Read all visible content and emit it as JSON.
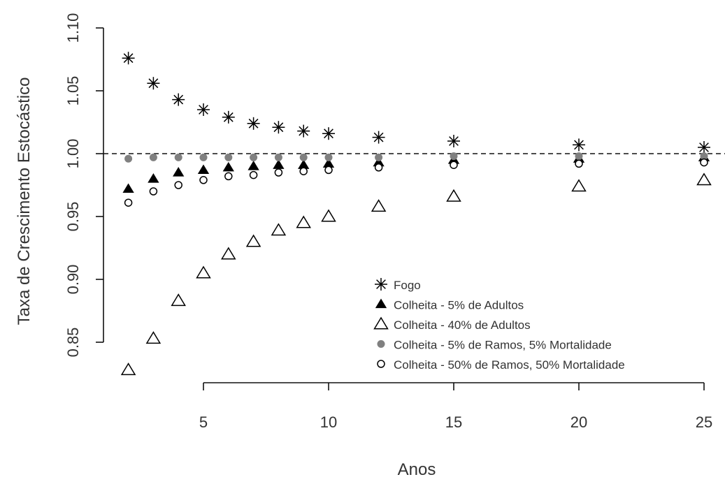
{
  "chart_data": {
    "type": "scatter",
    "xlabel": "Anos",
    "ylabel": "Taxa de Crescimento Estocástico",
    "xlim": [
      1.5,
      26
    ],
    "ylim": [
      0.82,
      1.1
    ],
    "x_ticks": [
      5,
      10,
      15,
      20,
      25
    ],
    "y_ticks": [
      0.85,
      0.9,
      0.95,
      1.0,
      1.05,
      1.1
    ],
    "x_tick_labels": [
      "5",
      "10",
      "15",
      "20",
      "25"
    ],
    "y_tick_labels": [
      "0.85",
      "0.90",
      "0.95",
      "1.00",
      "1.05",
      "1.10"
    ],
    "reference_line": {
      "y": 1.0,
      "style": "dashed"
    },
    "legend_position": "bottom-right",
    "x": [
      2,
      3,
      4,
      5,
      6,
      7,
      8,
      9,
      10,
      12,
      15,
      20,
      25
    ],
    "series": [
      {
        "name": "Fogo",
        "marker": "asterisk",
        "color": "#000000",
        "values": [
          1.076,
          1.056,
          1.043,
          1.035,
          1.029,
          1.024,
          1.021,
          1.018,
          1.016,
          1.013,
          1.01,
          1.007,
          1.005
        ]
      },
      {
        "name": "Colheita - 5% de Adultos",
        "marker": "filled-triangle",
        "color": "#000000",
        "values": [
          0.972,
          0.98,
          0.985,
          0.987,
          0.989,
          0.99,
          0.991,
          0.991,
          0.992,
          0.993,
          0.995,
          0.996,
          0.997
        ]
      },
      {
        "name": "Colheita - 40% de Adultos",
        "marker": "open-triangle",
        "color": "#000000",
        "values": [
          0.828,
          0.853,
          0.883,
          0.905,
          0.92,
          0.93,
          0.939,
          0.945,
          0.95,
          0.958,
          0.966,
          0.974,
          0.979
        ]
      },
      {
        "name": "Colheita - 5% de Ramos, 5% Mortalidade",
        "marker": "filled-circle",
        "color": "#808080",
        "values": [
          0.996,
          0.997,
          0.997,
          0.997,
          0.997,
          0.997,
          0.997,
          0.997,
          0.997,
          0.997,
          0.998,
          0.998,
          0.998
        ]
      },
      {
        "name": "Colheita - 50% de Ramos, 50% Mortalidade",
        "marker": "open-circle",
        "color": "#000000",
        "values": [
          0.961,
          0.97,
          0.975,
          0.979,
          0.982,
          0.983,
          0.985,
          0.986,
          0.987,
          0.989,
          0.991,
          0.992,
          0.993
        ]
      }
    ]
  }
}
